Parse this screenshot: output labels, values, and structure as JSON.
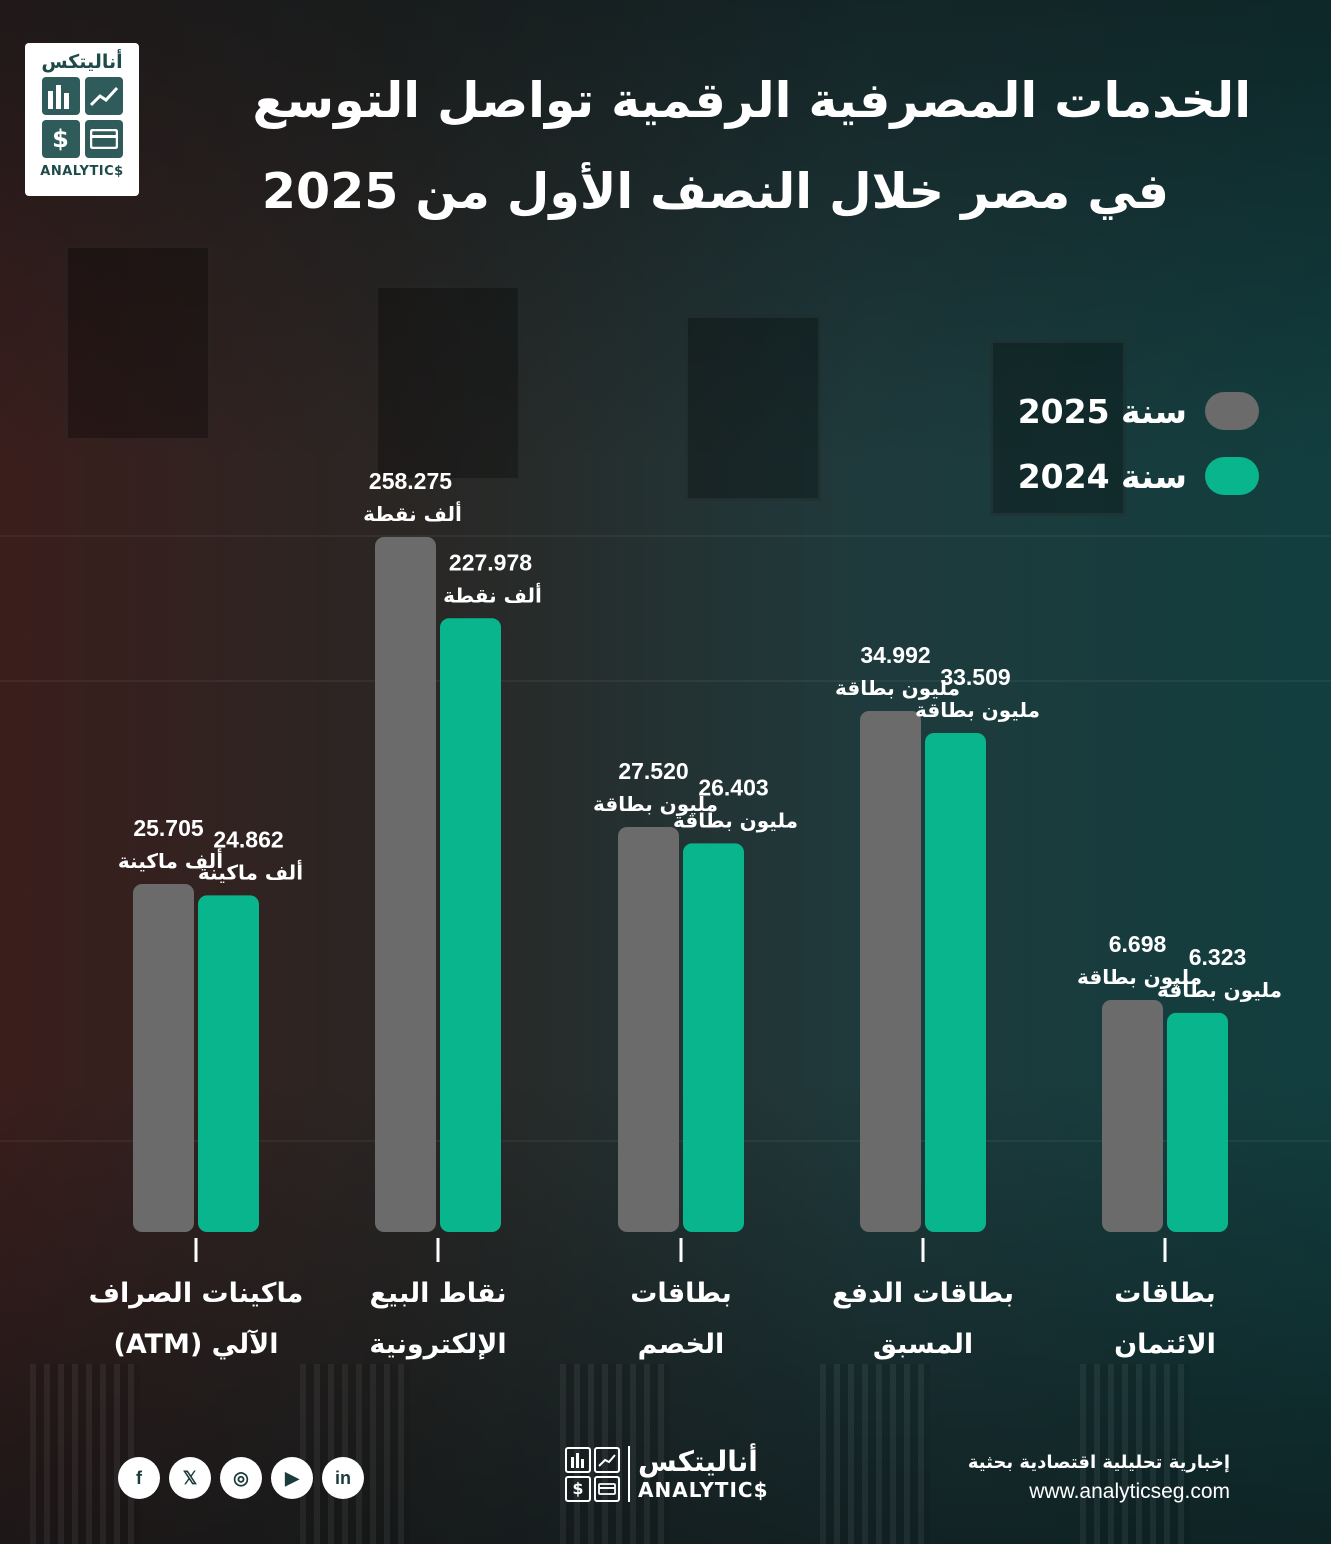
{
  "colors": {
    "series_2025": "#6b6b6b",
    "series_2024": "#08b58c"
  },
  "logo": {
    "arabic": "أناليتكس",
    "english": "ANALYTIC$"
  },
  "title": {
    "line1": "الخدمات المصرفية الرقمية تواصل التوسع",
    "line2": "في مصر خلال النصف الأول من 2025"
  },
  "legend": [
    {
      "label": "سنة 2025",
      "color": "#6b6b6b"
    },
    {
      "label": "سنة 2024",
      "color": "#08b58c"
    }
  ],
  "chart_data": {
    "type": "bar",
    "categories": [
      [
        "ماكينات الصراف",
        "الآلي (ATM)"
      ],
      [
        "نقاط البيع",
        "الإلكترونية"
      ],
      [
        "بطاقات",
        "الخصم"
      ],
      [
        "بطاقات الدفع",
        "المسبق"
      ],
      [
        "بطاقات",
        "الائتمان"
      ]
    ],
    "series": [
      {
        "name": "سنة 2025",
        "values": [
          25.705,
          258.275,
          27.52,
          34.992,
          6.698
        ],
        "labels": [
          "25.705",
          "258.275",
          "27.520",
          "34.992",
          "6.698"
        ],
        "units": [
          "ألف ماكينة",
          "ألف نقطة",
          "مليون بطاقة",
          "مليون بطاقة",
          "مليون بطاقة"
        ]
      },
      {
        "name": "سنة 2024",
        "values": [
          24.862,
          227.978,
          26.403,
          33.509,
          6.323
        ],
        "labels": [
          "24.862",
          "227.978",
          "26.403",
          "33.509",
          "6.323"
        ],
        "units": [
          "ألف ماكينة",
          "ألف نقطة",
          "مليون بطاقة",
          "مليون بطاقة",
          "مليون بطاقة"
        ]
      }
    ],
    "grid": false,
    "legend_position": "top-right"
  },
  "footer": {
    "logo_arabic": "أناليتكس",
    "logo_english": "ANALYTIC$",
    "tagline": "إخبارية تحليلية اقتصادية بحثية",
    "website": "www.analyticseg.com",
    "socials": [
      {
        "name": "facebook-icon",
        "glyph": "f"
      },
      {
        "name": "x-icon",
        "glyph": "𝕏"
      },
      {
        "name": "instagram-icon",
        "glyph": "◎"
      },
      {
        "name": "youtube-icon",
        "glyph": "▶"
      },
      {
        "name": "linkedin-icon",
        "glyph": "in"
      }
    ]
  }
}
